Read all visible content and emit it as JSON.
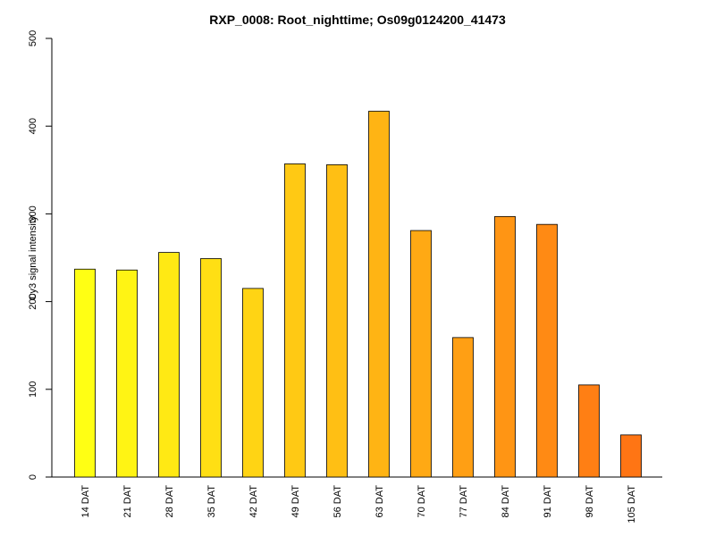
{
  "chart_data": {
    "type": "bar",
    "title": "RXP_0008: Root_nighttime; Os09g0124200_41473",
    "xlabel": "",
    "ylabel": "Cy3  signal intensity",
    "ylim": [
      0,
      500
    ],
    "yticks": [
      0,
      100,
      200,
      300,
      400,
      500
    ],
    "grid": false,
    "legend": "none",
    "categories": [
      "14 DAT",
      "21 DAT",
      "28 DAT",
      "35 DAT",
      "42 DAT",
      "49 DAT",
      "56 DAT",
      "63 DAT",
      "70 DAT",
      "77 DAT",
      "84 DAT",
      "91 DAT",
      "98 DAT",
      "105 DAT"
    ],
    "values": [
      237,
      236,
      256,
      249,
      215,
      357,
      356,
      417,
      281,
      159,
      297,
      288,
      105,
      48
    ],
    "bar_colors": [
      "#ffff14",
      "#fff414",
      "#ffe914",
      "#ffdf14",
      "#ffd414",
      "#ffc914",
      "#ffbf14",
      "#ffb414",
      "#ffa914",
      "#ff9f14",
      "#ff9514",
      "#ff8a14",
      "#ff7f14",
      "#ff7514"
    ]
  }
}
